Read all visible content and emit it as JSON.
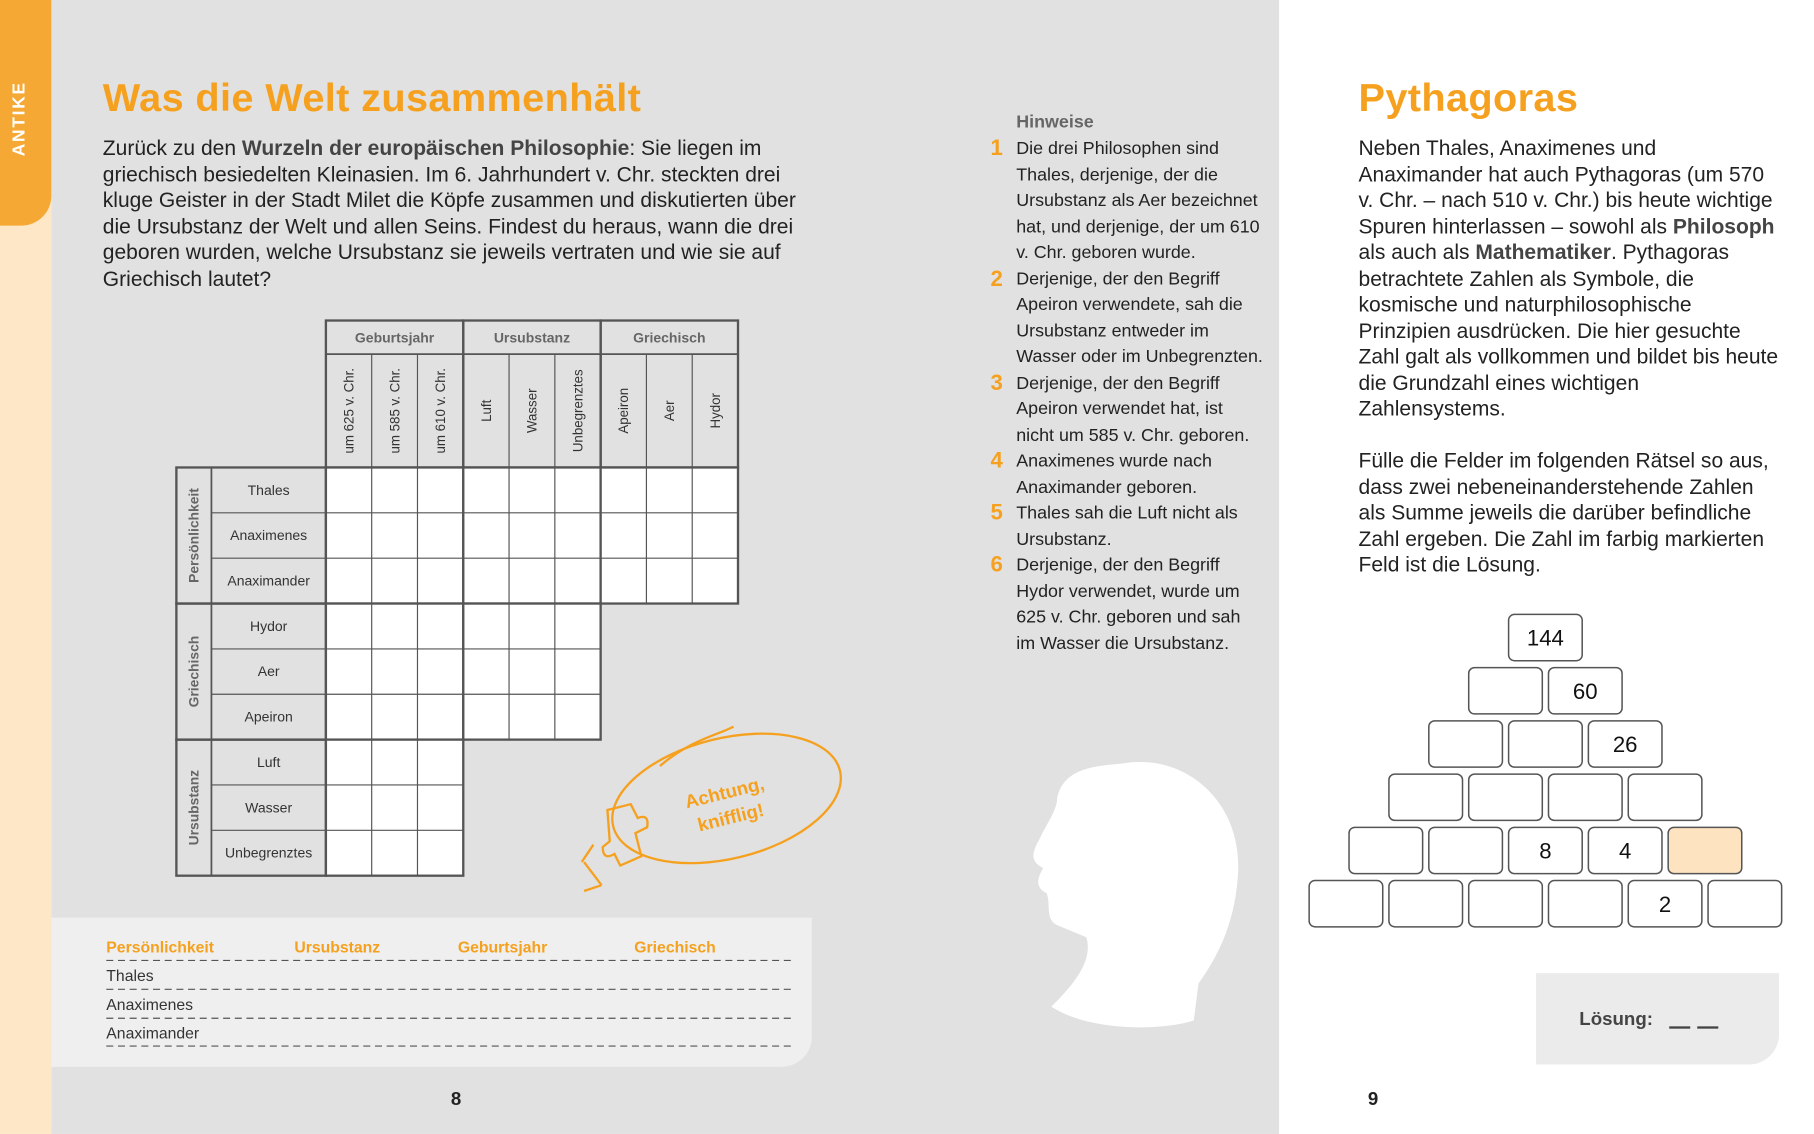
{
  "left_page": {
    "tab": "ANTIKE",
    "title": "Was die Welt zusammenhält",
    "intro": [
      "Zurück zu den ",
      "Wurzeln der europäischen Philosophie",
      ": Sie liegen im griechisch besiedelten Kleinasien. Im 6. Jahrhundert v. Chr. steckten drei kluge Geister in der Stadt Milet die Köpfe zusammen und diskutierten über die Ursubstanz der Welt und allen Seins. Findest du heraus, wann die drei geboren wurden, welche Ursubstanz sie jeweils vertraten und wie sie auf Griechisch lautet?"
    ],
    "grid": {
      "column_groups": [
        {
          "label": "Geburtsjahr",
          "columns": [
            "um 625 v. Chr.",
            "um 585 v. Chr.",
            "um 610 v. Chr."
          ]
        },
        {
          "label": "Ursubstanz",
          "columns": [
            "Luft",
            "Wasser",
            "Unbegrenztes"
          ]
        },
        {
          "label": "Griechisch",
          "columns": [
            "Apeiron",
            "Aer",
            "Hydor"
          ]
        }
      ],
      "row_groups": [
        {
          "label": "Persönlichkeit",
          "rows": [
            "Thales",
            "Anaximenes",
            "Anaximander"
          ]
        },
        {
          "label": "Griechisch",
          "rows": [
            "Hydor",
            "Aer",
            "Apeiron"
          ]
        },
        {
          "label": "Ursubstanz",
          "rows": [
            "Luft",
            "Wasser",
            "Unbegrenztes"
          ]
        }
      ]
    },
    "bubble": [
      "Achtung,",
      "knifflig!"
    ],
    "solution_table": {
      "headers": [
        "Persönlichkeit",
        "Ursubstanz",
        "Geburtsjahr",
        "Griechisch"
      ],
      "rows": [
        "Thales",
        "Anaximenes",
        "Anaximander"
      ]
    },
    "page_number": 8
  },
  "hints": {
    "heading": "Hinweise",
    "items": [
      {
        "number": 1,
        "text": "Die drei Philosophen sind Thales, derjenige, der die Ursubstanz als Aer bezeichnet hat, und derjenige, der um 610 v. Chr. geboren wurde."
      },
      {
        "number": 2,
        "text": "Derjenige, der den Begriff Apeiron verwendete, sah die Ursubstanz entweder im Wasser oder im Unbegrenzten."
      },
      {
        "number": 3,
        "text": "Derjenige, der den Begriff Apeiron verwendet hat, ist nicht um 585 v. Chr. geboren."
      },
      {
        "number": 4,
        "text": "Anaximenes wurde nach Anaximander geboren."
      },
      {
        "number": 5,
        "text": "Thales sah die Luft nicht als Ursubstanz."
      },
      {
        "number": 6,
        "text": "Derjenige, der den Begriff Hydor verwendet, wurde um 625 v. Chr. geboren und sah im Wasser die Ursubstanz."
      }
    ]
  },
  "right_page": {
    "title": "Pythagoras",
    "paragraph_1": [
      "Neben Thales, Anaximenes und Anaximander hat auch Pythagoras (um 570 v. Chr. – nach 510 v. Chr.) bis heute wichtige Spuren hinterlassen – sowohl als ",
      "Philosoph",
      " als auch als ",
      "Mathematiker",
      ". Pythagoras betrachtete Zahlen als Symbole, die kosmische und naturphilosophische Prinzipien ausdrücken. Die hier gesuchte Zahl galt als vollkommen und bildet bis heute die Grundzahl eines wichtigen Zahlensystems."
    ],
    "paragraph_2": "Fülle die Felder im folgenden Rätsel so aus, dass zwei nebeneinanderstehende Zahlen als Summe jeweils die darüber befindliche Zahl ergeben. Die Zahl im farbig markierten Feld ist die Lösung.",
    "pyramid": [
      [
        144
      ],
      [
        null,
        60
      ],
      [
        null,
        null,
        26
      ],
      [
        null,
        null,
        null,
        null
      ],
      [
        null,
        null,
        8,
        4,
        null
      ],
      [
        null,
        null,
        null,
        null,
        2,
        null
      ]
    ],
    "solution_label": "Lösung:",
    "page_number": 9
  }
}
